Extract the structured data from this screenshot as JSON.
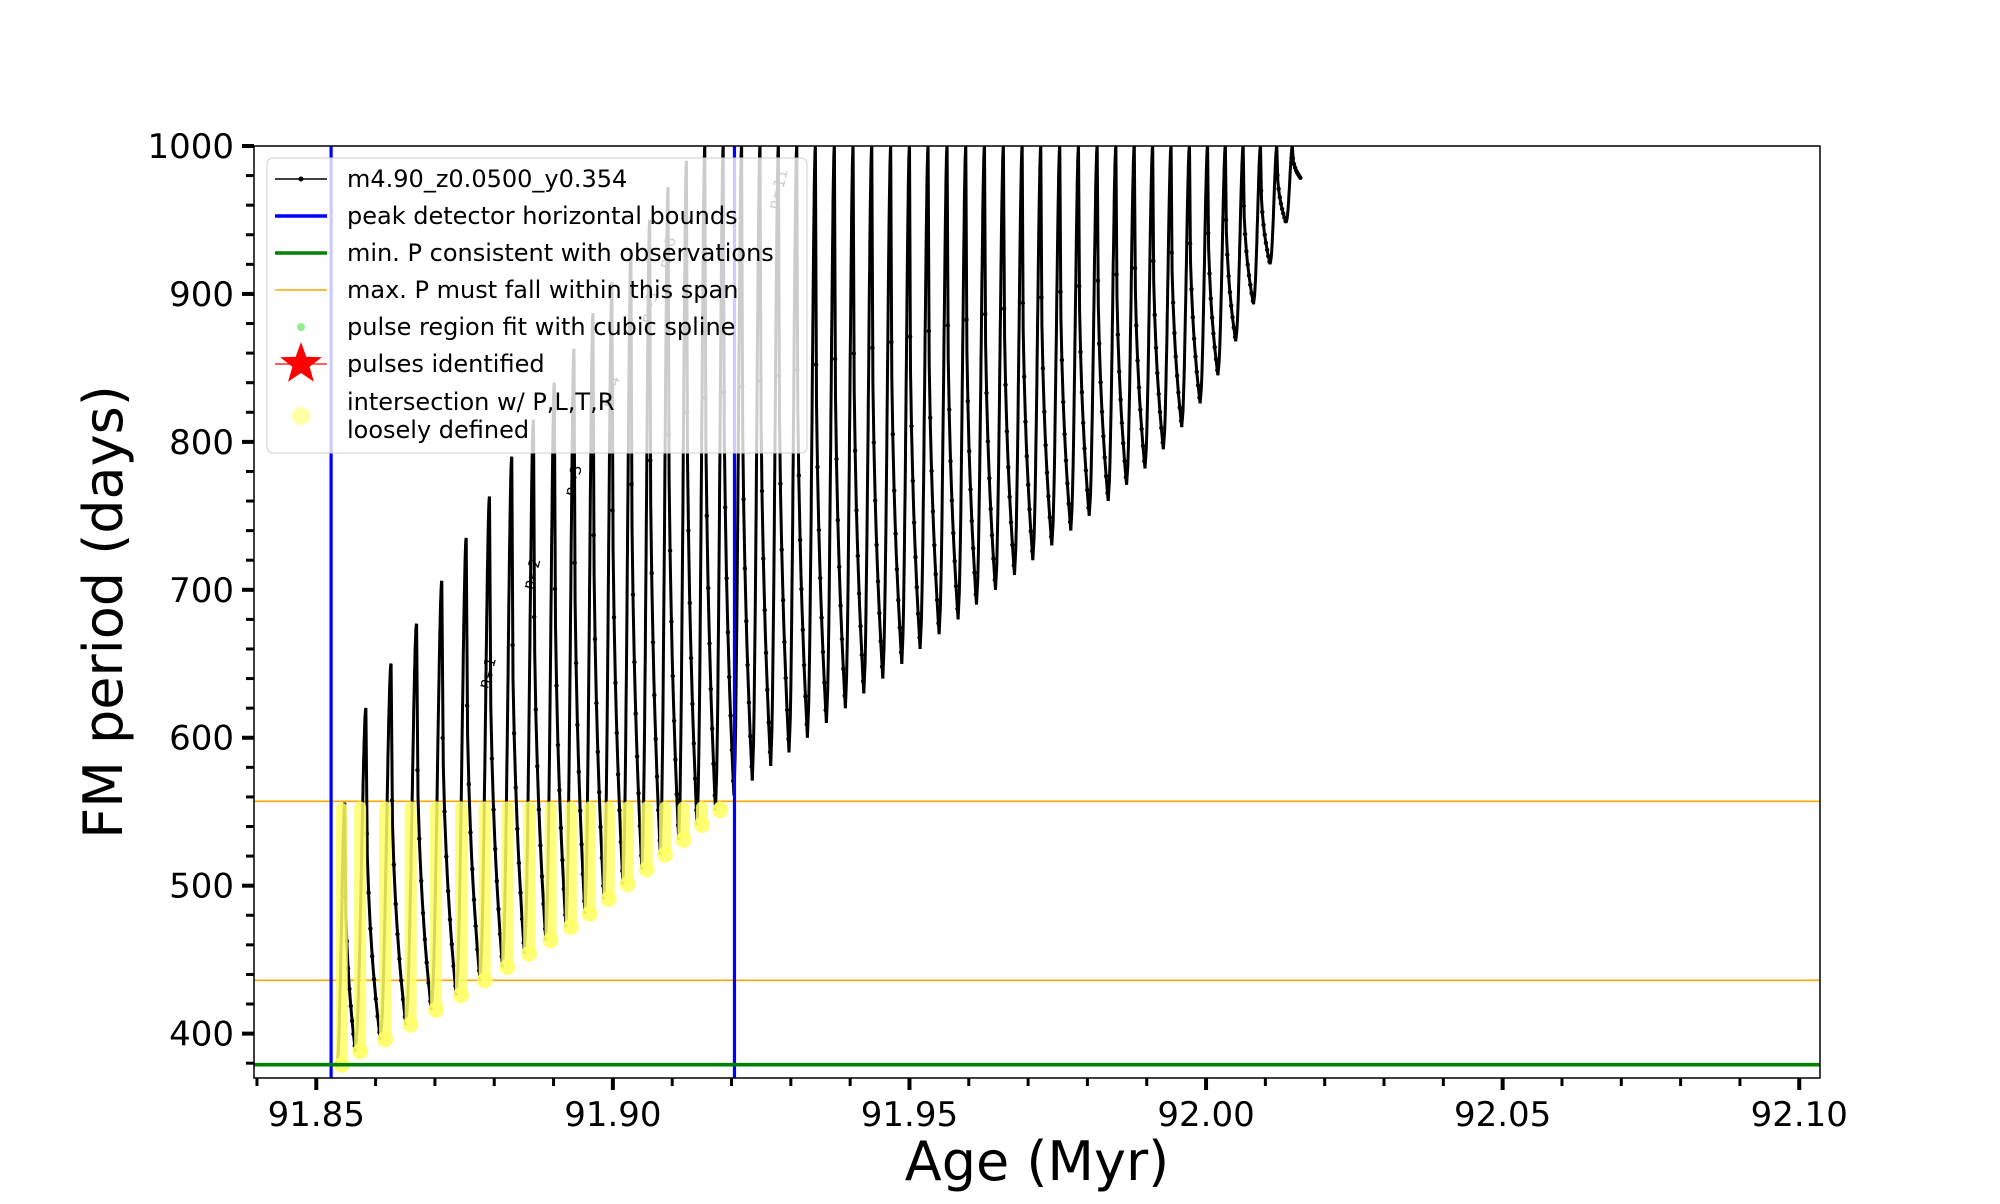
{
  "chart_data": {
    "type": "line",
    "title": "",
    "xlabel": "Age (Myr)",
    "ylabel": "FM period (days)",
    "xlim": [
      91.8395,
      92.1035
    ],
    "ylim": [
      370,
      1000
    ],
    "x_ticks": [
      91.85,
      91.9,
      91.95,
      92.0,
      92.05,
      92.1
    ],
    "x_tick_labels": [
      "91.85",
      "91.90",
      "91.95",
      "92.00",
      "92.05",
      "92.10"
    ],
    "y_ticks": [
      400,
      500,
      600,
      700,
      800,
      900,
      1000
    ],
    "y_tick_labels": [
      "400",
      "500",
      "600",
      "700",
      "800",
      "900",
      "1000"
    ],
    "grid": false,
    "legend_position": "top-left",
    "legend": [
      {
        "label": "m4.90_z0.0500_y0.354",
        "style": "line-marker",
        "color": "#000000"
      },
      {
        "label": "peak detector horizontal bounds",
        "style": "line",
        "color": "#0000ff"
      },
      {
        "label": "min. P consistent with observations",
        "style": "line",
        "color": "#008000"
      },
      {
        "label": "max. P must fall within this span",
        "style": "thin-line",
        "color": "#ffa500"
      },
      {
        "label": "pulse region fit with cubic spline",
        "style": "dot",
        "color": "#90ee90"
      },
      {
        "label": "pulses identified",
        "style": "star",
        "color": "#ff0000"
      },
      {
        "label": "intersection w/ P,L,T,R",
        "label2": "loosely defined",
        "style": "big-dot",
        "color": "#ffff66"
      }
    ],
    "vertical_lines": {
      "name": "peak detector horizontal bounds",
      "color": "#0000ff",
      "x": [
        91.8525,
        91.9205
      ]
    },
    "min_period_line": {
      "name": "min. P consistent with observations",
      "color": "#008000",
      "y": 379
    },
    "max_period_span": {
      "name": "max. P must fall within this span",
      "color": "#ffa500",
      "y": [
        436,
        557
      ]
    },
    "pulse_annotations": [
      "n=1",
      "n=2",
      "n=3",
      "n=4",
      "n=5",
      "n=6",
      "n=11"
    ],
    "series": [
      {
        "name": "m4.90_z0.0500_y0.354",
        "color": "#000000",
        "pulses": [
          {
            "x": 91.8535,
            "min": 378,
            "max": 556
          },
          {
            "x": 91.8566,
            "min": 388,
            "max": 620
          },
          {
            "x": 91.8608,
            "min": 396,
            "max": 650
          },
          {
            "x": 91.8651,
            "min": 406,
            "max": 677
          },
          {
            "x": 91.8694,
            "min": 416,
            "max": 706
          },
          {
            "x": 91.8736,
            "min": 426,
            "max": 735
          },
          {
            "x": 91.8776,
            "min": 436,
            "max": 763
          },
          {
            "x": 91.8814,
            "min": 445,
            "max": 790
          },
          {
            "x": 91.8851,
            "min": 454,
            "max": 815
          },
          {
            "x": 91.8887,
            "min": 463,
            "max": 840
          },
          {
            "x": 91.8921,
            "min": 472,
            "max": 863
          },
          {
            "x": 91.8953,
            "min": 481,
            "max": 887
          },
          {
            "x": 91.8985,
            "min": 491,
            "max": 908
          },
          {
            "x": 91.9017,
            "min": 501,
            "max": 930
          },
          {
            "x": 91.9049,
            "min": 511,
            "max": 950
          },
          {
            "x": 91.908,
            "min": 521,
            "max": 972
          },
          {
            "x": 91.9111,
            "min": 531,
            "max": 990
          },
          {
            "x": 91.9142,
            "min": 541,
            "max": 1000
          },
          {
            "x": 91.9173,
            "min": 551,
            "max": 1000
          },
          {
            "x": 91.9204,
            "min": 561,
            "max": 1000
          },
          {
            "x": 91.9235,
            "min": 571,
            "max": 1000
          },
          {
            "x": 91.9266,
            "min": 581,
            "max": 1000
          },
          {
            "x": 91.9297,
            "min": 590,
            "max": 1000
          },
          {
            "x": 91.9328,
            "min": 600,
            "max": 1000
          },
          {
            "x": 91.936,
            "min": 610,
            "max": 1000
          },
          {
            "x": 91.9392,
            "min": 620,
            "max": 1000
          },
          {
            "x": 91.9423,
            "min": 630,
            "max": 1000
          },
          {
            "x": 91.9455,
            "min": 640,
            "max": 1000
          },
          {
            "x": 91.9487,
            "min": 650,
            "max": 1000
          },
          {
            "x": 91.9518,
            "min": 660,
            "max": 1000
          },
          {
            "x": 91.955,
            "min": 670,
            "max": 1000
          },
          {
            "x": 91.9582,
            "min": 680,
            "max": 1000
          },
          {
            "x": 91.9613,
            "min": 690,
            "max": 1000
          },
          {
            "x": 91.9645,
            "min": 700,
            "max": 1000
          },
          {
            "x": 91.9677,
            "min": 710,
            "max": 1000
          },
          {
            "x": 91.9708,
            "min": 720,
            "max": 1000
          },
          {
            "x": 91.974,
            "min": 730,
            "max": 1000
          },
          {
            "x": 91.9772,
            "min": 740,
            "max": 1000
          },
          {
            "x": 91.9803,
            "min": 750,
            "max": 1000
          },
          {
            "x": 91.9835,
            "min": 760,
            "max": 1000
          },
          {
            "x": 91.9866,
            "min": 771,
            "max": 1000
          },
          {
            "x": 91.9897,
            "min": 782,
            "max": 1000
          },
          {
            "x": 91.9928,
            "min": 795,
            "max": 1000
          },
          {
            "x": 91.9959,
            "min": 810,
            "max": 1000
          },
          {
            "x": 91.999,
            "min": 826,
            "max": 1000
          },
          {
            "x": 92.002,
            "min": 845,
            "max": 1000
          },
          {
            "x": 92.005,
            "min": 868,
            "max": 1000
          },
          {
            "x": 92.008,
            "min": 893,
            "max": 1000
          },
          {
            "x": 92.0108,
            "min": 920,
            "max": 1000
          },
          {
            "x": 92.0135,
            "min": 948,
            "max": 1000
          },
          {
            "x": 92.016,
            "min": 978,
            "max": 1000
          }
        ]
      },
      {
        "name": "intersection w/ P,L,T,R",
        "color": "#ffff66",
        "type": "scatter",
        "note_range": [
          379,
          557
        ]
      }
    ]
  }
}
